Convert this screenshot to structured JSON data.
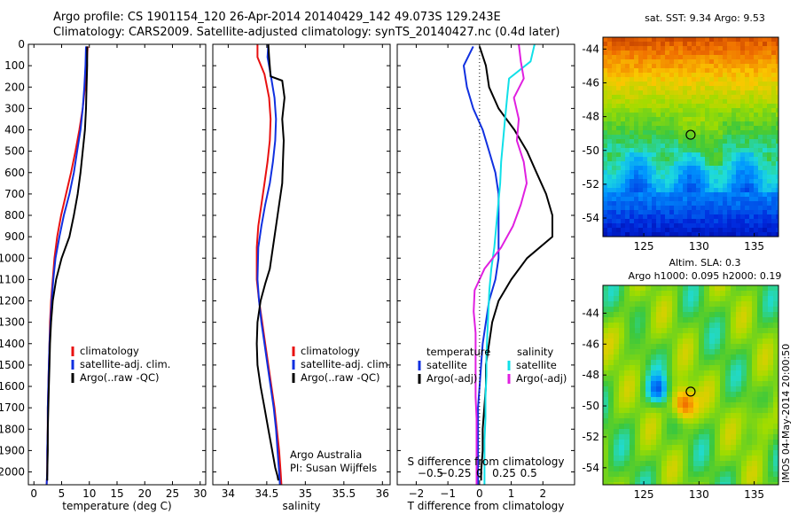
{
  "header": {
    "line1": "Argo profile: CS 1901154_120 26-Apr-2014 20140429_142 49.073S 129.243E",
    "line2": "Climatology: CARS2009. Satellite-adjusted climatology: synTS_20140427.nc (0.4d later)"
  },
  "colors": {
    "climatology": "#e81010",
    "satellite": "#1030e0",
    "argo": "#000000",
    "sal_satellite": "#10e0e8",
    "sal_argo": "#e020e0"
  },
  "chart_data": [
    {
      "type": "line",
      "panel": "temperature",
      "xlabel": "temperature (deg C)",
      "xlim": [
        -1,
        31
      ],
      "xticks": [
        0,
        5,
        10,
        15,
        20,
        25,
        30
      ],
      "ylim": [
        2060,
        0
      ],
      "yticks": [
        0,
        100,
        200,
        300,
        400,
        500,
        600,
        700,
        800,
        900,
        1000,
        1100,
        1200,
        1300,
        1400,
        1500,
        1600,
        1700,
        1800,
        1900,
        2000
      ],
      "legend": [
        "climatology",
        "satellite-adj. clim.",
        "Argo(..raw -QC)"
      ],
      "series": [
        {
          "name": "climatology",
          "color": "#e81010",
          "x": [
            9.7,
            9.5,
            9.2,
            8.8,
            8.2,
            7.5,
            6.7,
            5.8,
            4.9,
            4.2,
            3.7,
            3.4,
            3.1,
            2.9,
            2.8,
            2.7,
            2.6,
            2.5,
            2.5,
            2.4,
            2.4,
            2.3
          ],
          "y": [
            10,
            100,
            200,
            300,
            400,
            500,
            600,
            700,
            800,
            900,
            1000,
            1100,
            1200,
            1300,
            1400,
            1500,
            1600,
            1700,
            1800,
            1900,
            2000,
            2060
          ]
        },
        {
          "name": "satellite-adj. clim.",
          "color": "#1030e0",
          "x": [
            9.4,
            9.3,
            9.1,
            8.8,
            8.4,
            7.8,
            7.2,
            6.4,
            5.4,
            4.6,
            3.9,
            3.5,
            3.2,
            3.0,
            2.8,
            2.7,
            2.6,
            2.5,
            2.5,
            2.4,
            2.4,
            2.3
          ],
          "y": [
            10,
            100,
            200,
            300,
            400,
            500,
            600,
            700,
            800,
            900,
            1000,
            1100,
            1200,
            1300,
            1400,
            1500,
            1600,
            1700,
            1800,
            1900,
            2000,
            2060
          ]
        },
        {
          "name": "Argo(..raw -QC)",
          "color": "#000000",
          "x": [
            9.6,
            9.6,
            9.5,
            9.4,
            9.2,
            8.8,
            8.4,
            7.9,
            7.2,
            6.4,
            5.0,
            4.0,
            3.4,
            3.1,
            2.9,
            2.8,
            2.7,
            2.6,
            2.5,
            2.5,
            2.4,
            2.4
          ],
          "y": [
            10,
            100,
            200,
            300,
            400,
            500,
            600,
            700,
            800,
            900,
            1000,
            1100,
            1200,
            1300,
            1400,
            1500,
            1600,
            1700,
            1800,
            1900,
            2000,
            2040
          ]
        }
      ]
    },
    {
      "type": "line",
      "panel": "salinity",
      "xlabel": "salinity",
      "xlim": [
        33.8,
        36.1
      ],
      "xticks": [
        34,
        34.5,
        35,
        35.5,
        36
      ],
      "xtick_labels": [
        "34",
        "34.5",
        "35",
        "35.5",
        "36"
      ],
      "ylim": [
        2060,
        0
      ],
      "legend": [
        "climatology",
        "satellite-adj. clim.",
        "Argo(..raw -QC)"
      ],
      "annotation": [
        "Argo Australia",
        "PI: Susan Wijffels"
      ],
      "series": [
        {
          "name": "climatology",
          "color": "#e81010",
          "x": [
            34.38,
            34.38,
            34.47,
            34.53,
            34.55,
            34.54,
            34.51,
            34.47,
            34.43,
            34.39,
            34.37,
            34.37,
            34.4,
            34.44,
            34.48,
            34.52,
            34.56,
            34.6,
            34.63,
            34.66,
            34.68,
            34.69
          ],
          "y": [
            0,
            60,
            140,
            250,
            350,
            450,
            550,
            650,
            750,
            850,
            950,
            1100,
            1200,
            1300,
            1400,
            1500,
            1600,
            1700,
            1800,
            1900,
            2000,
            2060
          ]
        },
        {
          "name": "satellite-adj. clim.",
          "color": "#1030e0",
          "x": [
            34.52,
            34.51,
            34.55,
            34.6,
            34.62,
            34.61,
            34.58,
            34.54,
            34.48,
            34.43,
            34.39,
            34.38,
            34.4,
            34.43,
            34.47,
            34.51,
            34.55,
            34.59,
            34.62,
            34.64,
            34.66,
            34.67
          ],
          "y": [
            0,
            60,
            140,
            250,
            350,
            450,
            550,
            650,
            750,
            850,
            950,
            1100,
            1200,
            1300,
            1400,
            1500,
            1600,
            1700,
            1800,
            1900,
            2000,
            2060
          ]
        },
        {
          "name": "Argo(..raw -QC)",
          "color": "#000000",
          "x": [
            34.52,
            34.53,
            34.55,
            34.7,
            34.73,
            34.7,
            34.72,
            34.71,
            34.7,
            34.66,
            34.62,
            34.58,
            34.54,
            34.48,
            34.42,
            34.38,
            34.37,
            34.38,
            34.42,
            34.47,
            34.52,
            34.57,
            34.61,
            34.64,
            34.65
          ],
          "y": [
            0,
            60,
            150,
            170,
            250,
            350,
            450,
            550,
            650,
            750,
            850,
            950,
            1050,
            1120,
            1200,
            1300,
            1400,
            1500,
            1600,
            1700,
            1800,
            1900,
            1980,
            2020,
            2040
          ]
        }
      ]
    },
    {
      "type": "line",
      "panel": "difference",
      "xlabel": "T difference from climatology",
      "xlabel_top": "S difference from climatology",
      "xlim": [
        -2.6,
        3.0
      ],
      "xticks": [
        -2,
        -1,
        0,
        1,
        2
      ],
      "xtick_labels": [
        "−2",
        "−1",
        "0",
        "1",
        "2"
      ],
      "top_ticks": [
        -0.5,
        -0.25,
        0,
        0.25,
        0.5
      ],
      "top_tick_labels": [
        "−0.5",
        "−0.25",
        "0",
        "0.25",
        "0.5"
      ],
      "ylim": [
        2060,
        0
      ],
      "legend_t_title": "temperature",
      "legend_s_title": "salinity",
      "legend_t": [
        "satellite",
        "Argo(-adj)"
      ],
      "legend_s": [
        "satellite",
        "Argo(-adj)"
      ],
      "series": [
        {
          "name": "T satellite",
          "color": "#1030e0",
          "x": [
            -0.2,
            -0.5,
            -0.4,
            -0.2,
            0.1,
            0.3,
            0.5,
            0.6,
            0.6,
            0.6,
            0.6,
            0.5,
            0.3,
            0.2,
            0.1,
            0.05,
            0.0,
            -0.05,
            -0.05,
            -0.05,
            -0.05,
            -0.05
          ],
          "y": [
            10,
            100,
            200,
            300,
            400,
            500,
            600,
            700,
            800,
            900,
            1000,
            1100,
            1200,
            1300,
            1400,
            1500,
            1600,
            1700,
            1800,
            1900,
            2000,
            2060
          ]
        },
        {
          "name": "T Argo(-adj)",
          "color": "#000000",
          "x": [
            0.0,
            0.2,
            0.3,
            0.6,
            1.1,
            1.5,
            1.8,
            2.1,
            2.3,
            2.3,
            1.5,
            1.0,
            0.6,
            0.4,
            0.3,
            0.2,
            0.2,
            0.15,
            0.1,
            0.1,
            0.05,
            0.05
          ],
          "y": [
            10,
            100,
            200,
            300,
            400,
            500,
            600,
            700,
            800,
            900,
            1000,
            1100,
            1200,
            1300,
            1400,
            1500,
            1600,
            1700,
            1800,
            1900,
            2000,
            2040
          ]
        },
        {
          "name": "S satellite",
          "color": "#10e0e8",
          "x": [
            0.56,
            0.52,
            0.3,
            0.28,
            0.26,
            0.24,
            0.22,
            0.21,
            0.19,
            0.17,
            0.15,
            0.12,
            0.1,
            0.09,
            0.08,
            0.07,
            0.07,
            0.06,
            0.06,
            0.05,
            0.05,
            0.05
          ],
          "y": [
            0,
            80,
            160,
            250,
            350,
            450,
            550,
            650,
            750,
            850,
            950,
            1050,
            1150,
            1250,
            1350,
            1450,
            1550,
            1650,
            1750,
            1850,
            1950,
            2060
          ]
        },
        {
          "name": "S Argo(-adj)",
          "color": "#e020e0",
          "x": [
            0.4,
            0.42,
            0.45,
            0.35,
            0.4,
            0.38,
            0.45,
            0.48,
            0.42,
            0.34,
            0.22,
            0.05,
            -0.05,
            -0.06,
            -0.04,
            -0.04,
            -0.04,
            -0.04,
            -0.03,
            -0.03,
            -0.03,
            -0.03
          ],
          "y": [
            0,
            80,
            160,
            250,
            350,
            450,
            550,
            650,
            750,
            850,
            950,
            1050,
            1150,
            1250,
            1350,
            1450,
            1550,
            1650,
            1750,
            1850,
            1950,
            2060
          ]
        }
      ]
    },
    {
      "type": "heatmap",
      "panel": "sst_map",
      "title": "sat. SST: 9.34 Argo: 9.53",
      "xlim": [
        121.3,
        137.2
      ],
      "ylim": [
        -55.1,
        -43.3
      ],
      "xticks": [
        125,
        130,
        135
      ],
      "yticks": [
        -44,
        -46,
        -48,
        -50,
        -52,
        -54
      ],
      "marker": {
        "lon": 129.243,
        "lat": -49.073
      }
    },
    {
      "type": "heatmap",
      "panel": "sla_map",
      "title_line1": "Altim. SLA: 0.3",
      "title_line2": "Argo h1000: 0.095 h2000: 0.19",
      "xlim": [
        121.3,
        137.2
      ],
      "ylim": [
        -55.1,
        -42.2
      ],
      "xticks": [
        125,
        130,
        135
      ],
      "yticks": [
        -44,
        -46,
        -48,
        -50,
        -52,
        -54
      ],
      "marker": {
        "lon": 129.243,
        "lat": -49.073
      }
    }
  ],
  "footer": {
    "vertical_stamp": "IMOS 04-May-2014 20:00:50"
  }
}
